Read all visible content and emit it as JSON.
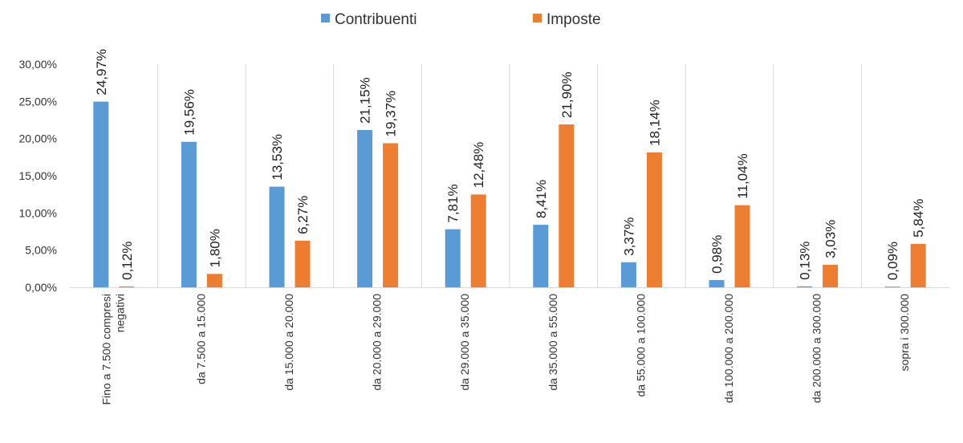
{
  "chart_data": {
    "type": "bar",
    "title": "",
    "xlabel": "",
    "ylabel": "",
    "ylim": [
      0,
      30
    ],
    "y_tick_values": [
      0,
      5,
      10,
      15,
      20,
      25,
      30
    ],
    "y_tick_labels": [
      "0,00%",
      "5,00%",
      "10,00%",
      "15,00%",
      "20,00%",
      "25,00%",
      "30,00%"
    ],
    "legend_position": "top-center",
    "grid": "vertical category separators",
    "categories": [
      "Fino a 7.500 compresi negativi",
      "da 7.500 a 15.000",
      "da 15.000 a 20.000",
      "da 20.000 a 29.000",
      "da 29.000 a 35.000",
      "da 35.000 a 55.000",
      "da 55.000 a 100.000",
      "da 100.000 a 200.000",
      "da 200.000 a 300.000",
      "sopra i 300.000"
    ],
    "category_lines": [
      [
        "Fino a 7.500 compresi",
        "negativi"
      ],
      [
        "da 7.500 a 15.000"
      ],
      [
        "da 15.000 a 20.000"
      ],
      [
        "da 20.000 a 29.000"
      ],
      [
        "da 29.000 a 35.000"
      ],
      [
        "da 35.000 a 55.000"
      ],
      [
        "da 55.000 a 100.000"
      ],
      [
        "da 100.000 a 200.000"
      ],
      [
        "da 200.000 a 300.000"
      ],
      [
        "sopra i 300.000"
      ]
    ],
    "series": [
      {
        "name": "Contribuenti",
        "color": "#5b9bd5",
        "values": [
          24.97,
          19.56,
          13.53,
          21.15,
          7.81,
          8.41,
          3.37,
          0.98,
          0.13,
          0.09
        ],
        "labels": [
          "24,97%",
          "19,56%",
          "13,53%",
          "21,15%",
          "7,81%",
          "8,41%",
          "3,37%",
          "0,98%",
          "0,13%",
          "0,09%"
        ]
      },
      {
        "name": "Imposte",
        "color": "#ed7d31",
        "values": [
          0.12,
          1.8,
          6.27,
          19.37,
          12.48,
          21.9,
          18.14,
          11.04,
          3.03,
          5.84
        ],
        "labels": [
          "0,12%",
          "1,80%",
          "6,27%",
          "19,37%",
          "12,48%",
          "21,90%",
          "18,14%",
          "11,04%",
          "3,03%",
          "5,84%"
        ]
      }
    ]
  }
}
